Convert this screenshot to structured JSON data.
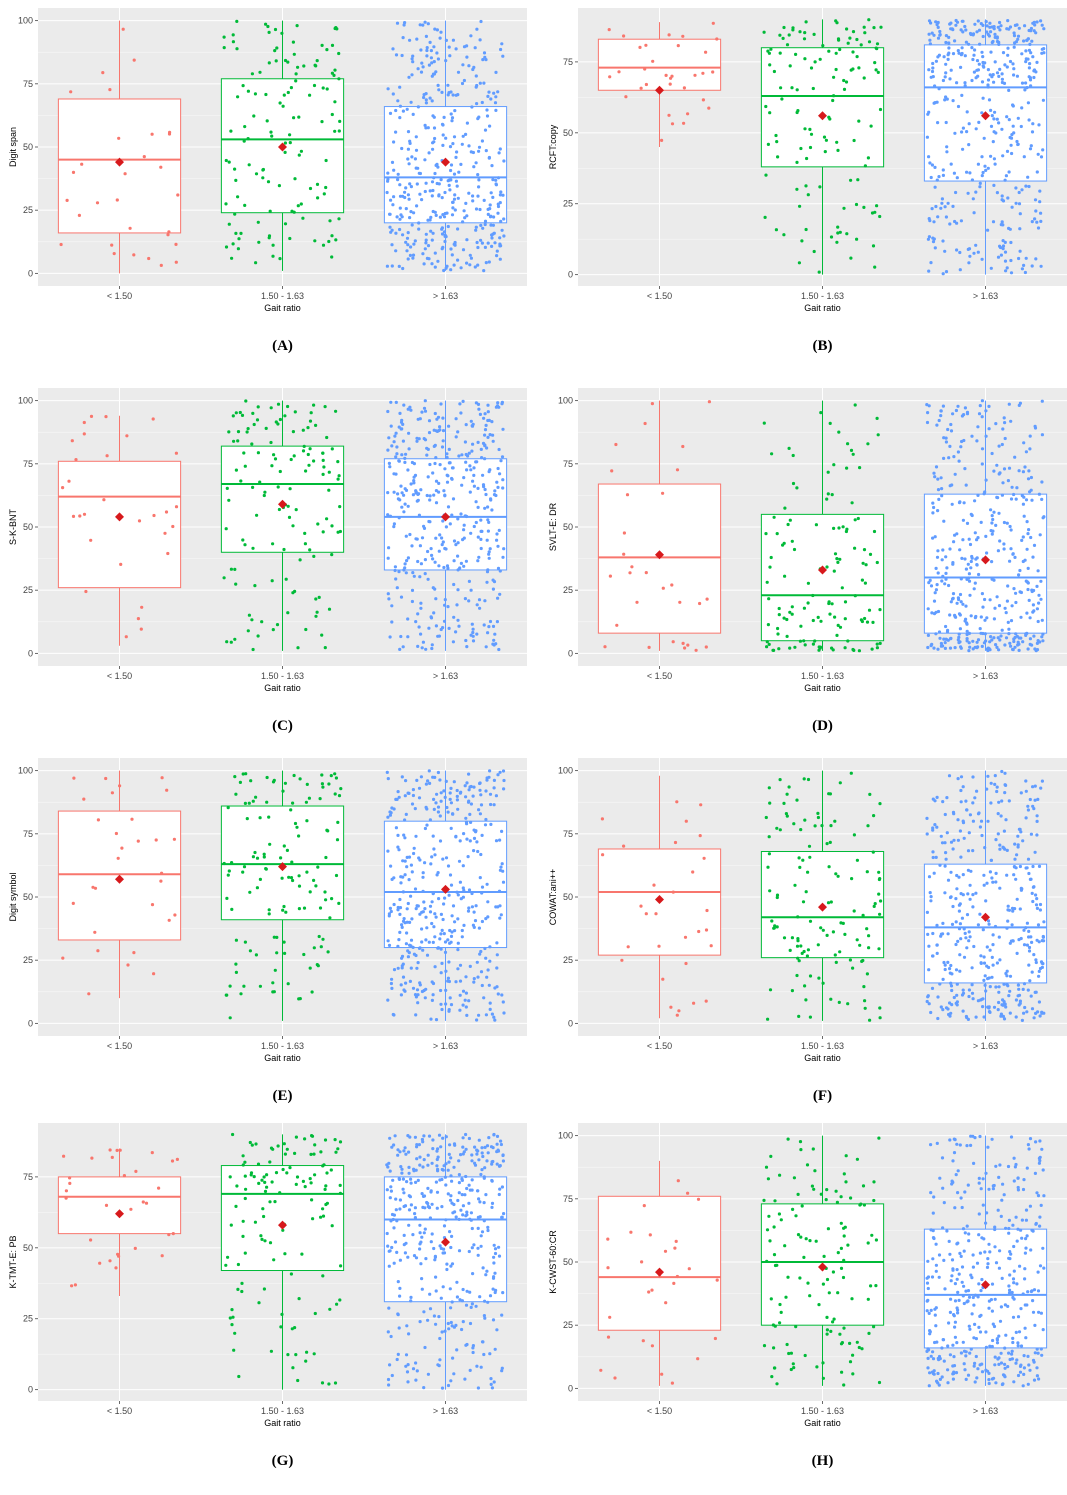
{
  "colors": {
    "group1": "#F8766D",
    "group2": "#00BA38",
    "group3": "#619CFF",
    "mean_marker": "#D7191C",
    "panel_background": "#EBEBEB",
    "grid": "#FFFFFF"
  },
  "chart_data": [
    {
      "panel_label": "(A)",
      "type": "box",
      "ylabel": "Digit span",
      "xlabel": "Gait ratio",
      "categories": [
        "< 1.50",
        "1.50 - 1.63",
        "> 1.63"
      ],
      "ylim": [
        -5,
        105
      ],
      "yticks": [
        "0",
        "25",
        "50",
        "75",
        "100"
      ],
      "series": [
        {
          "q1": 16,
          "median": 45,
          "q3": 69,
          "min": 0,
          "max": 100,
          "mean": 44,
          "n": 30
        },
        {
          "q1": 24,
          "median": 53,
          "q3": 77,
          "min": 1,
          "max": 100,
          "mean": 50,
          "n": 130
        },
        {
          "q1": 20,
          "median": 38,
          "q3": 66,
          "min": 1,
          "max": 100,
          "mean": 44,
          "n": 420
        }
      ]
    },
    {
      "panel_label": "(B)",
      "type": "box",
      "ylabel": "RCFT:copy",
      "xlabel": "Gait ratio",
      "categories": [
        "< 1.50",
        "1.50 - 1.63",
        "> 1.63"
      ],
      "ylim": [
        -4,
        94
      ],
      "yticks": [
        "0",
        "25",
        "50",
        "75"
      ],
      "series": [
        {
          "q1": 65,
          "median": 73,
          "q3": 83,
          "min": 45,
          "max": 89,
          "mean": 65,
          "n": 32
        },
        {
          "q1": 38,
          "median": 63,
          "q3": 80,
          "min": 0,
          "max": 90,
          "mean": 56,
          "n": 130
        },
        {
          "q1": 33,
          "median": 66,
          "q3": 81,
          "min": 0,
          "max": 90,
          "mean": 56,
          "n": 420
        }
      ]
    },
    {
      "panel_label": "(C)",
      "type": "box",
      "ylabel": "S-K-BNT",
      "xlabel": "Gait ratio",
      "categories": [
        "< 1.50",
        "1.50 - 1.63",
        "> 1.63"
      ],
      "ylim": [
        -5,
        105
      ],
      "yticks": [
        "0",
        "25",
        "50",
        "75",
        "100"
      ],
      "series": [
        {
          "q1": 26,
          "median": 62,
          "q3": 76,
          "min": 3,
          "max": 94,
          "mean": 54,
          "n": 30
        },
        {
          "q1": 40,
          "median": 67,
          "q3": 82,
          "min": 1,
          "max": 100,
          "mean": 59,
          "n": 130
        },
        {
          "q1": 33,
          "median": 54,
          "q3": 77,
          "min": 1,
          "max": 100,
          "mean": 54,
          "n": 420
        }
      ]
    },
    {
      "panel_label": "(D)",
      "type": "box",
      "ylabel": "SVLT-E: DR",
      "xlabel": "Gait ratio",
      "categories": [
        "< 1.50",
        "1.50 - 1.63",
        "> 1.63"
      ],
      "ylim": [
        -5,
        105
      ],
      "yticks": [
        "0",
        "25",
        "50",
        "75",
        "100"
      ],
      "series": [
        {
          "q1": 8,
          "median": 38,
          "q3": 67,
          "min": 1,
          "max": 100,
          "mean": 39,
          "n": 30
        },
        {
          "q1": 5,
          "median": 23,
          "q3": 55,
          "min": 1,
          "max": 100,
          "mean": 33,
          "n": 130
        },
        {
          "q1": 8,
          "median": 30,
          "q3": 63,
          "min": 1,
          "max": 100,
          "mean": 37,
          "n": 420
        }
      ]
    },
    {
      "panel_label": "(E)",
      "type": "box",
      "ylabel": "Digit symbol",
      "xlabel": "Gait ratio",
      "categories": [
        "< 1.50",
        "1.50 - 1.63",
        "> 1.63"
      ],
      "ylim": [
        -5,
        105
      ],
      "yticks": [
        "0",
        "25",
        "50",
        "75",
        "100"
      ],
      "series": [
        {
          "q1": 33,
          "median": 59,
          "q3": 84,
          "min": 10,
          "max": 100,
          "mean": 57,
          "n": 30
        },
        {
          "q1": 41,
          "median": 63,
          "q3": 86,
          "min": 1,
          "max": 100,
          "mean": 62,
          "n": 130
        },
        {
          "q1": 30,
          "median": 52,
          "q3": 80,
          "min": 1,
          "max": 100,
          "mean": 53,
          "n": 420
        }
      ]
    },
    {
      "panel_label": "(F)",
      "type": "box",
      "ylabel": "COWAT:ani++",
      "xlabel": "Gait ratio",
      "categories": [
        "< 1.50",
        "1.50 - 1.63",
        "> 1.63"
      ],
      "ylim": [
        -5,
        105
      ],
      "yticks": [
        "0",
        "25",
        "50",
        "75",
        "100"
      ],
      "series": [
        {
          "q1": 27,
          "median": 52,
          "q3": 69,
          "min": 2,
          "max": 98,
          "mean": 49,
          "n": 30
        },
        {
          "q1": 26,
          "median": 42,
          "q3": 68,
          "min": 1,
          "max": 100,
          "mean": 46,
          "n": 130
        },
        {
          "q1": 16,
          "median": 38,
          "q3": 63,
          "min": 1,
          "max": 100,
          "mean": 42,
          "n": 420
        }
      ]
    },
    {
      "panel_label": "(G)",
      "type": "box",
      "ylabel": "K-TMT-E: PB",
      "xlabel": "Gait ratio",
      "categories": [
        "< 1.50",
        "1.50 - 1.63",
        "> 1.63"
      ],
      "ylim": [
        -4,
        94
      ],
      "yticks": [
        "0",
        "25",
        "50",
        "75"
      ],
      "series": [
        {
          "q1": 55,
          "median": 68,
          "q3": 75,
          "min": 33,
          "max": 85,
          "mean": 62,
          "n": 32
        },
        {
          "q1": 42,
          "median": 69,
          "q3": 79,
          "min": 0,
          "max": 90,
          "mean": 58,
          "n": 130
        },
        {
          "q1": 31,
          "median": 60,
          "q3": 75,
          "min": 0,
          "max": 90,
          "mean": 52,
          "n": 420
        }
      ]
    },
    {
      "panel_label": "(H)",
      "type": "box",
      "ylabel": "K-CWST-60:CR",
      "xlabel": "Gait ratio",
      "categories": [
        "< 1.50",
        "1.50 - 1.63",
        "> 1.63"
      ],
      "ylim": [
        -5,
        105
      ],
      "yticks": [
        "0",
        "25",
        "50",
        "75",
        "100"
      ],
      "series": [
        {
          "q1": 23,
          "median": 44,
          "q3": 76,
          "min": 1,
          "max": 90,
          "mean": 46,
          "n": 30
        },
        {
          "q1": 25,
          "median": 50,
          "q3": 73,
          "min": 1,
          "max": 100,
          "mean": 48,
          "n": 130
        },
        {
          "q1": 16,
          "median": 37,
          "q3": 63,
          "min": 1,
          "max": 100,
          "mean": 41,
          "n": 420
        }
      ]
    }
  ]
}
